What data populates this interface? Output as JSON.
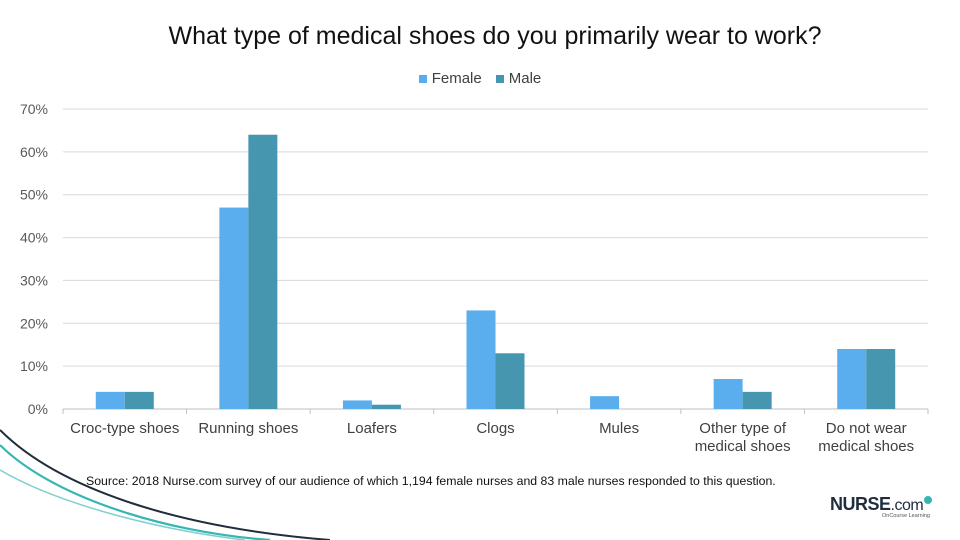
{
  "chart_data": {
    "type": "bar",
    "title": "What type of medical shoes do you primarily wear to work?",
    "xlabel": "",
    "ylabel": "",
    "ylim": [
      0,
      70
    ],
    "yticks": [
      0,
      10,
      20,
      30,
      40,
      50,
      60,
      70
    ],
    "ytick_labels": [
      "0%",
      "10%",
      "20%",
      "30%",
      "40%",
      "50%",
      "60%",
      "70%"
    ],
    "grid": true,
    "legend_position": "top-center",
    "categories": [
      [
        "Croc-type shoes"
      ],
      [
        "Running shoes"
      ],
      [
        "Loafers"
      ],
      [
        "Clogs"
      ],
      [
        "Mules"
      ],
      [
        "Other type of",
        "medical shoes"
      ],
      [
        "Do not wear",
        "medical shoes"
      ]
    ],
    "series": [
      {
        "name": "Female",
        "color": "#5aaeee",
        "values": [
          4,
          47,
          2,
          23,
          3,
          7,
          14
        ]
      },
      {
        "name": "Male",
        "color": "#4796b0",
        "values": [
          4,
          64,
          1,
          13,
          0,
          4,
          14
        ]
      }
    ]
  },
  "footer": {
    "source": "Source: 2018 Nurse.com survey of our audience of which 1,194 female nurses and 83 male nurses responded to this question."
  },
  "logo": {
    "name": "NURSE",
    "suffix": ".com",
    "tagline": "OnCourse Learning",
    "accent_color": "#35b6b3"
  }
}
